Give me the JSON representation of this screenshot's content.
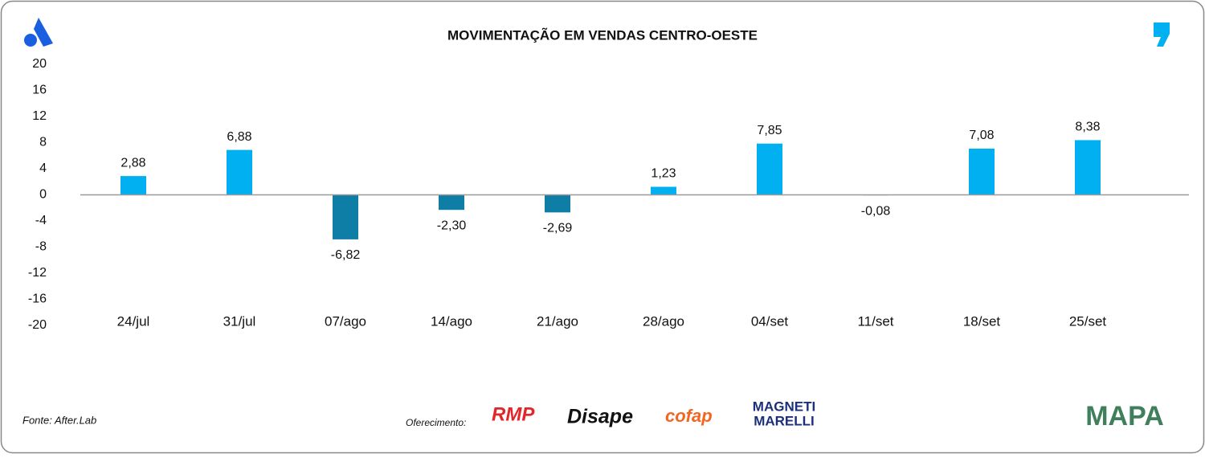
{
  "chart_data": {
    "type": "bar",
    "title": "MOVIMENTAÇÃO EM VENDAS CENTRO-OESTE",
    "categories": [
      "24/jul",
      "31/jul",
      "07/ago",
      "14/ago",
      "21/ago",
      "28/ago",
      "04/set",
      "11/set",
      "18/set",
      "25/set"
    ],
    "values": [
      2.88,
      6.88,
      -6.82,
      -2.3,
      -2.69,
      1.23,
      7.85,
      -0.08,
      7.08,
      8.38
    ],
    "value_labels": [
      "2,88",
      "6,88",
      "-6,82",
      "-2,30",
      "-2,69",
      "1,23",
      "7,85",
      "-0,08",
      "7,08",
      "8,38"
    ],
    "color": "#00b0f0",
    "negative_color": "#0f7ea6",
    "ylim": [
      -20,
      20
    ],
    "yticks": [
      20,
      16,
      12,
      8,
      4,
      0,
      -4,
      -8,
      -12,
      -16,
      -20
    ],
    "grid": false
  },
  "footer": {
    "source": "Fonte: After.Lab",
    "sponsor_label": "Oferecimento:",
    "sponsors": [
      "RMP",
      "Disape",
      "cofap",
      "MAGNETI",
      "MARELLI"
    ],
    "brand": "MAPA"
  }
}
